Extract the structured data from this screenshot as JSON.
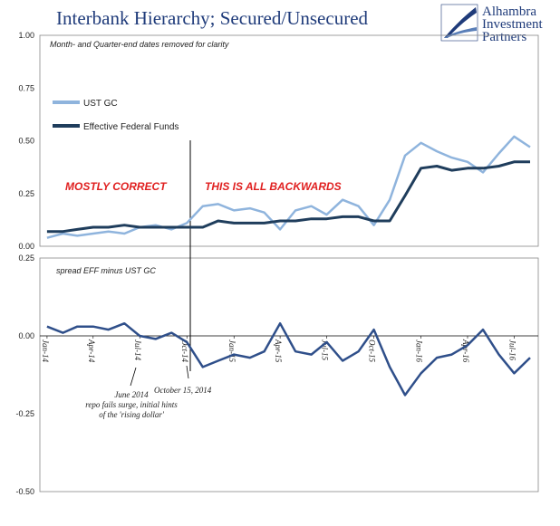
{
  "title": "Interbank Hierarchy; Secured/Unsecured",
  "logo": {
    "line1": "Alhambra",
    "line2": "Investment",
    "line3": "Partners",
    "icon": "alhambra-swoosh-logo"
  },
  "colors": {
    "ust_gc": "#8fb4dd",
    "eff": "#1f3d5c",
    "spread": "#2f4f8a",
    "red": "#e02020",
    "title": "#1f3b7a"
  },
  "chart_data": [
    {
      "type": "line",
      "panel": "top",
      "ylim": [
        0,
        1.0
      ],
      "yticks": [
        "1.00",
        "0.75",
        "0.50",
        "0.25",
        "0.00"
      ],
      "note": "Month- and Quarter-end dates removed for clarity",
      "legend": [
        "UST GC",
        "Effective Federal Funds"
      ],
      "annotations": [
        "MOSTLY CORRECT",
        "THIS IS ALL BACKWARDS"
      ],
      "series": [
        {
          "name": "UST GC",
          "x": [
            "2014-01",
            "2014-02",
            "2014-03",
            "2014-04",
            "2014-05",
            "2014-06",
            "2014-07",
            "2014-08",
            "2014-09",
            "2014-10",
            "2014-11",
            "2014-12",
            "2015-01",
            "2015-02",
            "2015-03",
            "2015-04",
            "2015-05",
            "2015-06",
            "2015-07",
            "2015-08",
            "2015-09",
            "2015-10",
            "2015-11",
            "2015-12",
            "2016-01",
            "2016-02",
            "2016-03",
            "2016-04",
            "2016-05",
            "2016-06",
            "2016-07",
            "2016-08"
          ],
          "values": [
            0.04,
            0.06,
            0.05,
            0.06,
            0.07,
            0.06,
            0.09,
            0.1,
            0.08,
            0.11,
            0.19,
            0.2,
            0.17,
            0.18,
            0.16,
            0.08,
            0.17,
            0.19,
            0.15,
            0.22,
            0.19,
            0.1,
            0.22,
            0.43,
            0.49,
            0.45,
            0.42,
            0.4,
            0.35,
            0.44,
            0.52,
            0.47
          ]
        },
        {
          "name": "Effective Federal Funds",
          "x": [
            "2014-01",
            "2014-02",
            "2014-03",
            "2014-04",
            "2014-05",
            "2014-06",
            "2014-07",
            "2014-08",
            "2014-09",
            "2014-10",
            "2014-11",
            "2014-12",
            "2015-01",
            "2015-02",
            "2015-03",
            "2015-04",
            "2015-05",
            "2015-06",
            "2015-07",
            "2015-08",
            "2015-09",
            "2015-10",
            "2015-11",
            "2015-12",
            "2016-01",
            "2016-02",
            "2016-03",
            "2016-04",
            "2016-05",
            "2016-06",
            "2016-07",
            "2016-08"
          ],
          "values": [
            0.07,
            0.07,
            0.08,
            0.09,
            0.09,
            0.1,
            0.09,
            0.09,
            0.09,
            0.09,
            0.09,
            0.12,
            0.11,
            0.11,
            0.11,
            0.12,
            0.12,
            0.13,
            0.13,
            0.14,
            0.14,
            0.12,
            0.12,
            0.24,
            0.37,
            0.38,
            0.36,
            0.37,
            0.37,
            0.38,
            0.4,
            0.4
          ]
        }
      ]
    },
    {
      "type": "line",
      "panel": "bottom",
      "ylim": [
        -0.5,
        0.25
      ],
      "yticks": [
        "0.25",
        "0.00",
        "-0.25",
        "-0.50"
      ],
      "note": "spread EFF minus UST GC",
      "xticks": [
        "Jan-14",
        "Apr-14",
        "Jul-14",
        "Oct-14",
        "Jan-15",
        "Apr-15",
        "Jul-15",
        "Oct-15",
        "Jan-16",
        "Apr-16",
        "Jul-16"
      ],
      "annotations": [
        "June 2014",
        "repo fails surge, initial hints",
        "of the 'rising dollar'",
        "October 15, 2014"
      ],
      "series": [
        {
          "name": "spread EFF minus UST GC",
          "x": [
            "2014-01",
            "2014-02",
            "2014-03",
            "2014-04",
            "2014-05",
            "2014-06",
            "2014-07",
            "2014-08",
            "2014-09",
            "2014-10",
            "2014-11",
            "2014-12",
            "2015-01",
            "2015-02",
            "2015-03",
            "2015-04",
            "2015-05",
            "2015-06",
            "2015-07",
            "2015-08",
            "2015-09",
            "2015-10",
            "2015-11",
            "2015-12",
            "2016-01",
            "2016-02",
            "2016-03",
            "2016-04",
            "2016-05",
            "2016-06",
            "2016-07",
            "2016-08"
          ],
          "values": [
            0.03,
            0.01,
            0.03,
            0.03,
            0.02,
            0.04,
            0.0,
            -0.01,
            0.01,
            -0.02,
            -0.1,
            -0.08,
            -0.06,
            -0.07,
            -0.05,
            0.04,
            -0.05,
            -0.06,
            -0.02,
            -0.08,
            -0.05,
            0.02,
            -0.1,
            -0.19,
            -0.12,
            -0.07,
            -0.06,
            -0.03,
            0.02,
            -0.06,
            -0.12,
            -0.07
          ]
        }
      ]
    }
  ]
}
